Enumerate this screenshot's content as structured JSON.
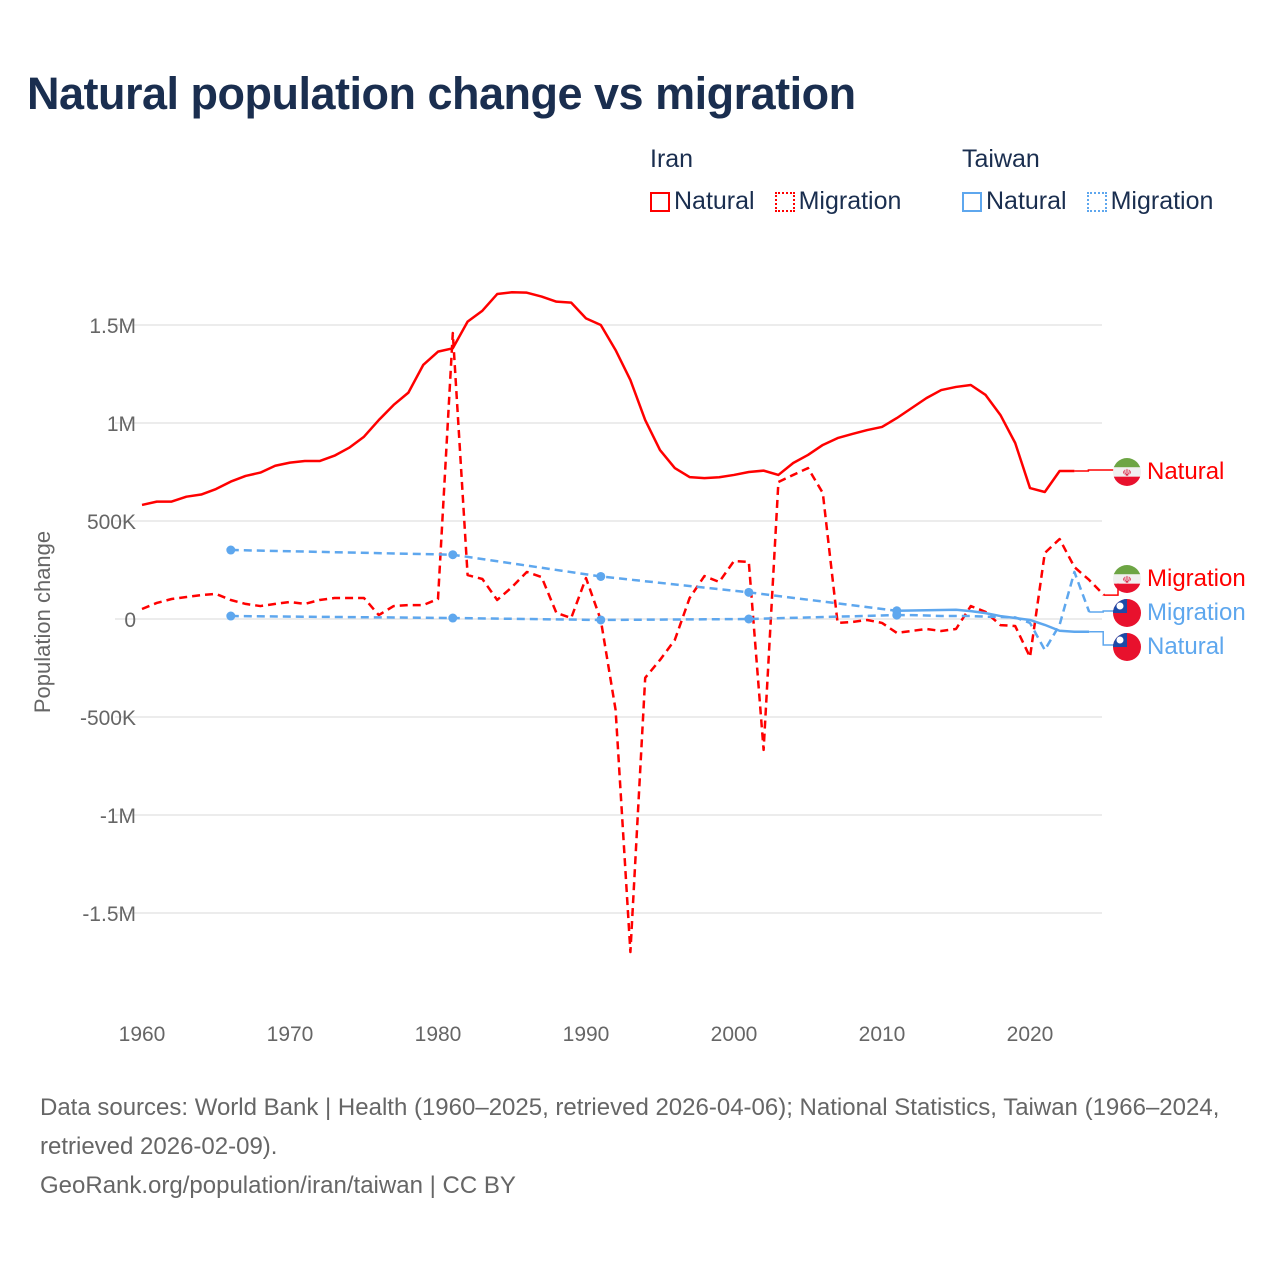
{
  "title": "Natural population change vs migration",
  "legend": {
    "groups": [
      {
        "name": "Iran",
        "color": "#ff0000",
        "items": [
          "Natural",
          "Migration"
        ]
      },
      {
        "name": "Taiwan",
        "color": "#5ea7ee",
        "items": [
          "Natural",
          "Migration"
        ]
      }
    ]
  },
  "chart_data": {
    "type": "line",
    "title": "Natural population change vs migration",
    "xlabel": "",
    "ylabel": "Population change",
    "xlim": [
      1960,
      2025
    ],
    "ylim": [
      -1700000,
      1700000
    ],
    "x_ticks": [
      1960,
      1970,
      1980,
      1990,
      2000,
      2010,
      2020
    ],
    "y_ticks": [
      {
        "value": 1500000,
        "label": "1.5M"
      },
      {
        "value": 1000000,
        "label": "1M"
      },
      {
        "value": 500000,
        "label": "500K"
      },
      {
        "value": 0,
        "label": "0"
      },
      {
        "value": -500000,
        "label": "-500K"
      },
      {
        "value": -1000000,
        "label": "-1M"
      },
      {
        "value": -1500000,
        "label": "-1.5M"
      }
    ],
    "grid": true,
    "series": [
      {
        "name": "Iran Natural",
        "end_label": "Natural",
        "country": "Iran",
        "color": "#ff0000",
        "style": "solid",
        "x": [
          1960,
          1961,
          1962,
          1963,
          1964,
          1965,
          1966,
          1967,
          1968,
          1969,
          1970,
          1971,
          1972,
          1973,
          1974,
          1975,
          1976,
          1977,
          1978,
          1979,
          1980,
          1981,
          1982,
          1983,
          1984,
          1985,
          1986,
          1987,
          1988,
          1989,
          1990,
          1991,
          1992,
          1993,
          1994,
          1995,
          1996,
          1997,
          1998,
          1999,
          2000,
          2001,
          2002,
          2003,
          2004,
          2005,
          2006,
          2007,
          2008,
          2009,
          2010,
          2011,
          2012,
          2013,
          2014,
          2015,
          2016,
          2017,
          2018,
          2019,
          2020,
          2021,
          2022,
          2023
        ],
        "values": [
          582000,
          599000,
          599000,
          624000,
          635000,
          663000,
          701000,
          730000,
          747000,
          782000,
          798000,
          806000,
          806000,
          833000,
          874000,
          930000,
          1015000,
          1092000,
          1155000,
          1296000,
          1364000,
          1381000,
          1517000,
          1573000,
          1658000,
          1667000,
          1665000,
          1645000,
          1619000,
          1614000,
          1534000,
          1500000,
          1372000,
          1219000,
          1015000,
          862000,
          770000,
          724000,
          719000,
          723000,
          735000,
          750000,
          757000,
          735000,
          796000,
          837000,
          888000,
          923000,
          944000,
          964000,
          980000,
          1025000,
          1076000,
          1127000,
          1168000,
          1184000,
          1194000,
          1143000,
          1041000,
          898000,
          668000,
          648000,
          755000,
          755000
        ]
      },
      {
        "name": "Iran Migration",
        "end_label": "Migration",
        "country": "Iran",
        "color": "#ff0000",
        "style": "dashed",
        "x": [
          1960,
          1961,
          1962,
          1963,
          1964,
          1965,
          1966,
          1967,
          1968,
          1969,
          1970,
          1971,
          1972,
          1973,
          1974,
          1975,
          1976,
          1977,
          1978,
          1979,
          1980,
          1981,
          1982,
          1983,
          1984,
          1985,
          1986,
          1987,
          1988,
          1989,
          1990,
          1991,
          1992,
          1993,
          1994,
          1995,
          1996,
          1997,
          1998,
          1999,
          2000,
          2001,
          2002,
          2003,
          2004,
          2005,
          2006,
          2007,
          2008,
          2009,
          2010,
          2011,
          2012,
          2013,
          2014,
          2015,
          2016,
          2017,
          2018,
          2019,
          2020,
          2021,
          2022,
          2023,
          2024,
          2025
        ],
        "values": [
          51000,
          82000,
          102000,
          112000,
          122000,
          128000,
          97000,
          77000,
          66000,
          77000,
          87000,
          77000,
          97000,
          107000,
          107000,
          107000,
          20000,
          66000,
          71000,
          71000,
          102000,
          1459000,
          224000,
          204000,
          97000,
          163000,
          240000,
          214000,
          31000,
          5000,
          209000,
          -5000,
          -464000,
          -1699000,
          -300000,
          -209000,
          -107000,
          107000,
          219000,
          189000,
          296000,
          291000,
          -668000,
          699000,
          735000,
          770000,
          643000,
          -20000,
          -15000,
          -5000,
          -20000,
          -71000,
          -61000,
          -51000,
          -61000,
          -51000,
          66000,
          36000,
          -31000,
          -36000,
          -194000,
          337000,
          408000,
          265000,
          199000,
          122000
        ]
      },
      {
        "name": "Taiwan Natural",
        "end_label": "Natural",
        "country": "Taiwan",
        "color": "#5ea7ee",
        "style": "solid",
        "x": [
          1966,
          1981,
          1991,
          2001,
          2011,
          2015,
          2016,
          2017,
          2018,
          2019,
          2020,
          2021,
          2022,
          2023,
          2024
        ],
        "values": [
          352000,
          328000,
          217000,
          136000,
          42000,
          47000,
          40000,
          30000,
          15000,
          5000,
          -5000,
          -30000,
          -60000,
          -65000,
          -65000
        ]
      },
      {
        "name": "Taiwan Migration",
        "end_label": "Migration",
        "country": "Taiwan",
        "color": "#5ea7ee",
        "style": "dashed",
        "x": [
          1966,
          1981,
          1991,
          2001,
          2011,
          2012,
          2013,
          2014,
          2015,
          2016,
          2017,
          2018,
          2019,
          2020,
          2021,
          2022,
          2023,
          2024
        ],
        "values": [
          15000,
          5000,
          -5000,
          0,
          20000,
          20000,
          18000,
          15000,
          15000,
          15000,
          12000,
          10000,
          8000,
          -20000,
          -158000,
          -30000,
          240000,
          36000
        ]
      }
    ]
  },
  "footer": {
    "sources": "Data sources: World Bank | Health (1960–2025, retrieved 2026-04-06); National Statistics, Taiwan (1966–2024, retrieved 2026-02-09).",
    "credit": "GeoRank.org/population/iran/taiwan | CC BY"
  }
}
